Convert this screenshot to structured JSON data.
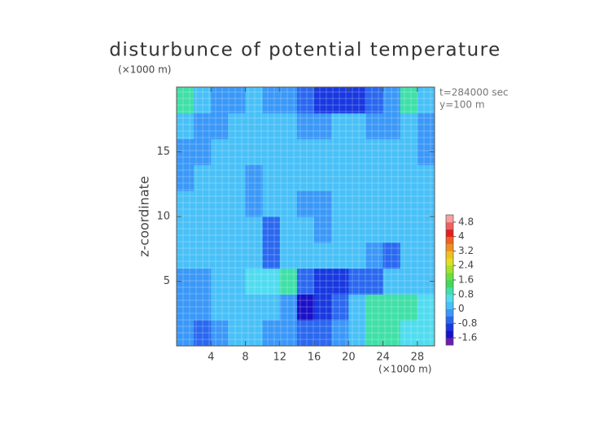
{
  "chart_data": {
    "type": "heatmap",
    "title": "disturbunce of potential temperature",
    "y_unit_label": "(×1000 m)",
    "x_unit_label": "(×1000 m)",
    "ylabel": "z-coordinate",
    "annotations": [
      "t=284000 sec",
      "y=100 m"
    ],
    "xlim": [
      0,
      30
    ],
    "ylim": [
      0,
      20
    ],
    "xticks": [
      4,
      8,
      12,
      16,
      20,
      24,
      28
    ],
    "yticks": [
      5,
      10,
      15
    ],
    "grid": true,
    "x_bins": [
      0,
      2,
      4,
      6,
      8,
      10,
      12,
      14,
      16,
      18,
      20,
      22,
      24,
      26,
      28,
      30
    ],
    "y_bins": [
      0,
      2,
      4,
      6,
      8,
      10,
      12,
      14,
      16,
      18,
      20
    ],
    "values": [
      [
        -0.4,
        -0.5,
        -0.2,
        0.2,
        0.1,
        -0.2,
        -0.3,
        -0.6,
        -0.5,
        -0.3,
        0.3,
        0.9,
        1.1,
        0.7,
        0.4
      ],
      [
        -0.4,
        -0.3,
        0.1,
        0.2,
        0.2,
        0.2,
        -0.4,
        -1.4,
        -1.2,
        -0.6,
        0.2,
        0.9,
        1.0,
        1.0,
        0.6
      ],
      [
        -0.2,
        -0.3,
        0.2,
        0.3,
        0.5,
        0.5,
        0.9,
        -0.5,
        -0.9,
        -1.0,
        -0.8,
        -0.5,
        0.2,
        0.3,
        0.3
      ],
      [
        0.2,
        0.2,
        0.2,
        0.3,
        0.3,
        -0.5,
        0.3,
        0.3,
        0.3,
        0.2,
        0.0,
        -0.4,
        -0.5,
        0.2,
        0.2
      ],
      [
        0.1,
        0.2,
        0.3,
        0.2,
        0.3,
        -0.6,
        0.3,
        0.2,
        -0.3,
        0.3,
        0.3,
        0.3,
        0.1,
        0.2,
        0.1
      ],
      [
        0.1,
        0.2,
        0.2,
        0.2,
        -0.2,
        0.3,
        0.3,
        -0.2,
        -0.2,
        0.3,
        0.3,
        0.3,
        0.2,
        0.2,
        0.1
      ],
      [
        -0.4,
        0.1,
        0.2,
        0.3,
        -0.2,
        0.3,
        0.3,
        0.2,
        0.1,
        0.3,
        0.3,
        0.3,
        0.2,
        0.2,
        0.1
      ],
      [
        -0.4,
        -0.3,
        0.2,
        0.3,
        0.3,
        0.3,
        0.3,
        0.3,
        0.2,
        0.3,
        0.3,
        0.2,
        0.2,
        0.1,
        -0.2
      ],
      [
        0.2,
        -0.3,
        -0.2,
        0.2,
        0.3,
        0.3,
        0.3,
        -0.3,
        -0.3,
        0.1,
        0.2,
        -0.3,
        -0.3,
        0.2,
        -0.2
      ],
      [
        1.0,
        0.3,
        -0.3,
        -0.3,
        0.2,
        -0.2,
        -0.3,
        -0.5,
        -0.9,
        -0.9,
        -0.9,
        -0.5,
        -0.3,
        0.9,
        0.3
      ]
    ],
    "colorbar": {
      "bins": [
        -2.0,
        -1.6,
        -1.2,
        -0.8,
        -0.4,
        0,
        0.4,
        0.8,
        1.2,
        1.6,
        2.0,
        2.4,
        2.8,
        3.2,
        3.6,
        4.0,
        4.4,
        4.8,
        5.2
      ],
      "colors": [
        "#6a1fb0",
        "#1a10c8",
        "#1838e0",
        "#2a68f0",
        "#3a98f8",
        "#48c0f8",
        "#50dcf0",
        "#40e0a8",
        "#40d860",
        "#68e040",
        "#a8e030",
        "#e0e020",
        "#f0c020",
        "#f09020",
        "#f06020",
        "#e02020",
        "#f06060",
        "#f8a0a0"
      ],
      "ticks": [
        -1.6,
        -0.8,
        0,
        0.8,
        1.6,
        2.4,
        3.2,
        4,
        4.8
      ]
    }
  }
}
